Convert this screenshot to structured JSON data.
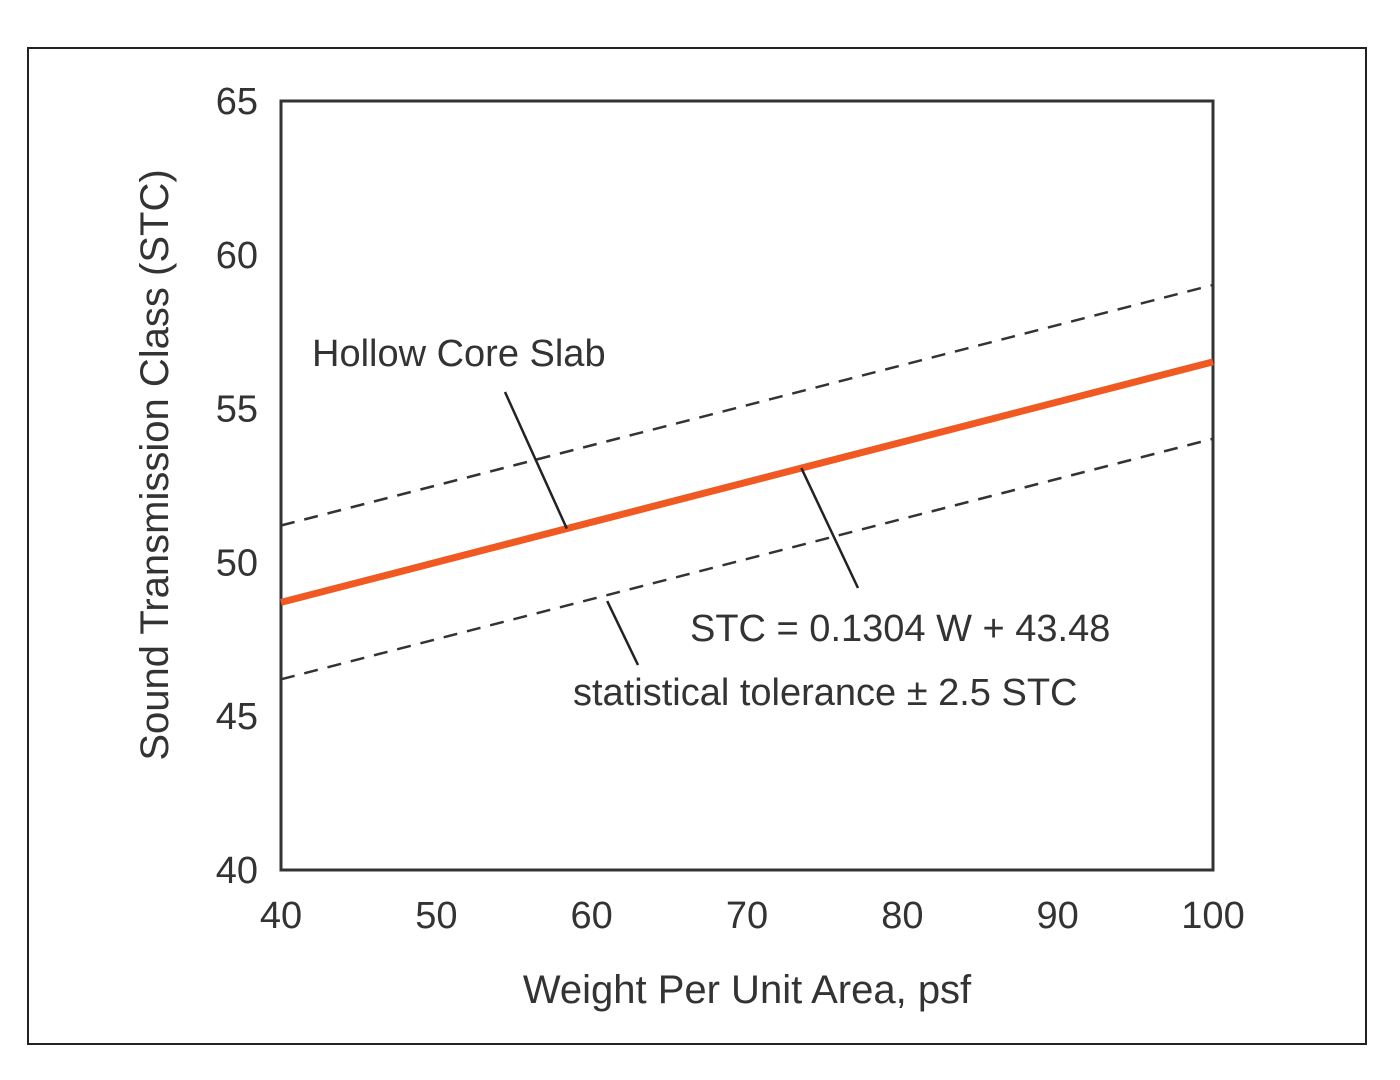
{
  "chart_data": {
    "type": "line",
    "xlabel": "Weight Per Unit Area, psf",
    "ylabel": "Sound Transmission Class (STC)",
    "xlim": [
      40,
      100
    ],
    "ylim": [
      40,
      65
    ],
    "x_ticks": [
      "40",
      "50",
      "60",
      "70",
      "80",
      "90",
      "100"
    ],
    "y_ticks": [
      "40",
      "45",
      "50",
      "55",
      "60",
      "65"
    ],
    "grid": false,
    "series": [
      {
        "x": [
          40,
          100
        ],
        "y": [
          48.7,
          56.52
        ],
        "color": "#f05a22",
        "style": "solid"
      },
      {
        "x": [
          40,
          100
        ],
        "y": [
          51.2,
          59.02
        ],
        "color": "#333333",
        "style": "dashed"
      },
      {
        "x": [
          40,
          100
        ],
        "y": [
          46.2,
          54.02
        ],
        "color": "#333333",
        "style": "dashed"
      }
    ],
    "annotations": {
      "hollow_core": "Hollow Core Slab",
      "equation": "STC = 0.1304 W + 43.48",
      "tolerance": "statistical tolerance ± 2.5 STC"
    }
  }
}
